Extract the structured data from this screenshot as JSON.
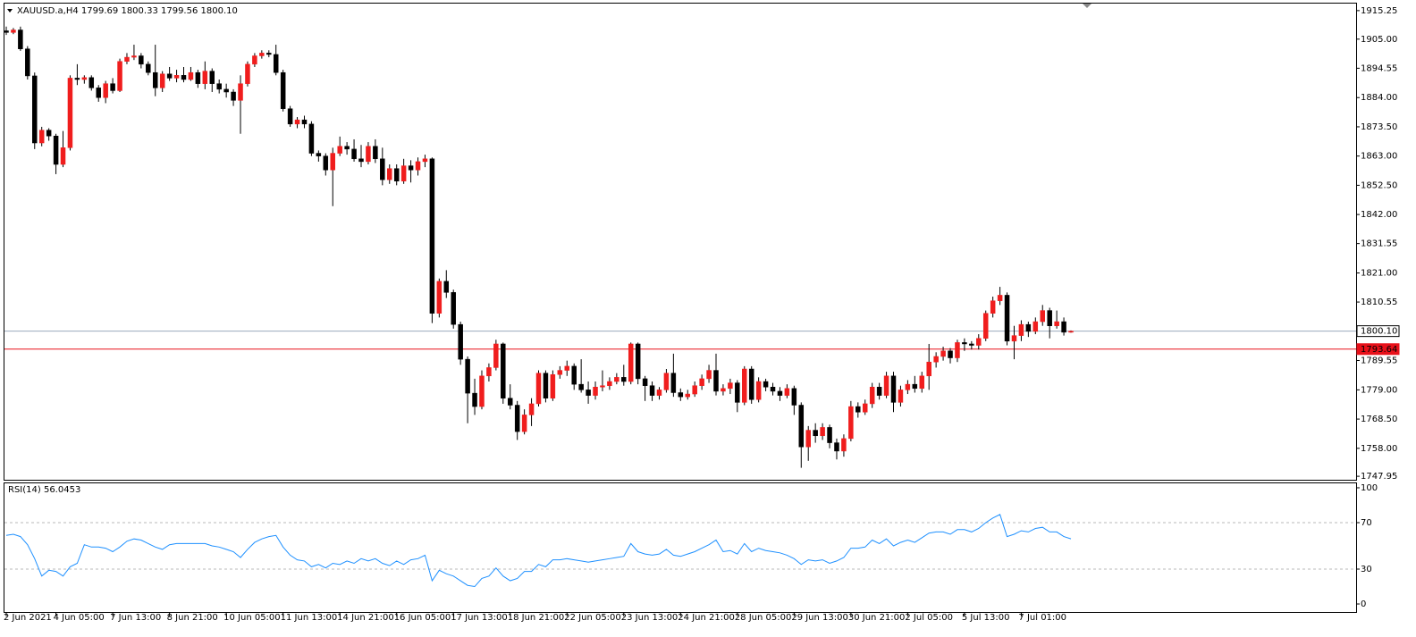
{
  "chart_data": [
    {
      "type": "candlestick",
      "title": "XAUUSD.a,H4 1799.69 1800.33 1799.56 1800.10",
      "categories": [
        "2 Jun 2021",
        null,
        null,
        null,
        null,
        null,
        null,
        "4 Jun 05:00",
        null,
        null,
        null,
        null,
        null,
        null,
        null,
        "7 Jun 13:00",
        null,
        null,
        null,
        null,
        null,
        null,
        null,
        "8 Jun 21:00",
        null,
        null,
        null,
        null,
        null,
        null,
        null,
        "10 Jun 05:00",
        null,
        null,
        null,
        null,
        null,
        null,
        null,
        "11 Jun 13:00",
        null,
        null,
        null,
        null,
        null,
        null,
        null,
        "14 Jun 21:00",
        null,
        null,
        null,
        null,
        null,
        null,
        null,
        "16 Jun 05:00",
        null,
        null,
        null,
        null,
        null,
        null,
        null,
        "17 Jun 13:00",
        null,
        null,
        null,
        null,
        null,
        null,
        null,
        "18 Jun 21:00",
        null,
        null,
        null,
        null,
        null,
        null,
        null,
        "22 Jun 05:00",
        null,
        null,
        null,
        null,
        null,
        null,
        null,
        "23 Jun 13:00",
        null,
        null,
        null,
        null,
        null,
        null,
        null,
        "24 Jun 21:00",
        null,
        null,
        null,
        null,
        null,
        null,
        null,
        "28 Jun 05:00",
        null,
        null,
        null,
        null,
        null,
        null,
        null,
        "29 Jun 13:00",
        null,
        null,
        null,
        null,
        null,
        null,
        null,
        "30 Jun 21:00",
        null,
        null,
        null,
        null,
        null,
        null,
        null,
        "2 Jul 05:00",
        null,
        null,
        null,
        null,
        null,
        null,
        null,
        "5 Jul 13:00",
        null,
        null,
        null,
        null,
        null,
        null,
        null,
        "7 Jul 01:00",
        null,
        null,
        null,
        null,
        null,
        null,
        null
      ],
      "open": [
        1908.0,
        1907.4,
        1908.3,
        1901.5,
        1891.8,
        1867.7,
        1872.3,
        1870.2,
        1860.0,
        1866.0,
        1891.0,
        1890.5,
        1891.2,
        1887.5,
        1884.0,
        1889.0,
        1886.5,
        1897.0,
        1898.5,
        1899.0,
        1896.0,
        1893.0,
        1887.5,
        1892.5,
        1891.0,
        1892.0,
        1890.5,
        1893.0,
        1889.0,
        1893.5,
        1889.0,
        1887.0,
        1886.0,
        1883.0,
        1889.0,
        1896.0,
        1899.0,
        1900.0,
        1899.5,
        1893.0,
        1880.0,
        1874.5,
        1876.0,
        1874.5,
        1864.0,
        1863.0,
        1858.0,
        1864.0,
        1866.5,
        1865.5,
        1862.0,
        1861.0,
        1866.5,
        1862.0,
        1854.5,
        1858.5,
        1854.0,
        1859.5,
        1858.0,
        1861.0,
        1862.0,
        1806.5,
        1818.0,
        1814.0,
        1802.5,
        1790.0,
        1777.8,
        1773.0,
        1784.0,
        1787.0,
        1795.5,
        1776.0,
        1773.5,
        1764.0,
        1770.0,
        1774.0,
        1785.0,
        1776.0,
        1784.5,
        1786.0,
        1787.5,
        1781.0,
        1779.0,
        1777.0,
        1780.0,
        1780.5,
        1782.0,
        1783.5,
        1782.0,
        1795.5,
        1783.0,
        1780.5,
        1777.0,
        1779.0,
        1785.0,
        1778.0,
        1776.5,
        1777.5,
        1780.5,
        1783.0,
        1786.0,
        1778.5,
        1779.5,
        1781.5,
        1774.5,
        1786.5,
        1775.5,
        1782.0,
        1780.0,
        1778.5,
        1777.0,
        1779.5,
        1773.5,
        1758.5,
        1764.5,
        1762.5,
        1765.5,
        1760.0,
        1757.0,
        1761.5,
        1773.0,
        1771.0,
        1774.0,
        1780.0,
        1777.0,
        1784.0,
        1774.5,
        1779.0,
        1781.0,
        1779.5,
        1784.0,
        1789.0,
        1791.0,
        1793.0,
        1790.5,
        1796.0,
        1795.5,
        1795.0,
        1797.5,
        1806.5,
        1811.0,
        1813.0,
        1796.5,
        1798.5,
        1802.5,
        1800.0,
        1803.5,
        1807.5,
        1802.0,
        1803.5,
        1799.69
      ],
      "high": [
        1909.5,
        1909.0,
        1909.5,
        1902.5,
        1893.0,
        1873.5,
        1873.0,
        1871.0,
        1872.0,
        1892.0,
        1896.0,
        1892.0,
        1892.0,
        1888.5,
        1890.0,
        1891.0,
        1898.0,
        1900.0,
        1903.0,
        1900.0,
        1897.0,
        1903.0,
        1893.5,
        1895.0,
        1894.0,
        1895.0,
        1895.0,
        1894.0,
        1897.0,
        1894.5,
        1890.5,
        1889.0,
        1887.0,
        1892.0,
        1897.0,
        1900.0,
        1901.0,
        1901.0,
        1903.0,
        1894.0,
        1881.0,
        1877.0,
        1877.5,
        1875.5,
        1865.0,
        1864.0,
        1866.0,
        1870.0,
        1868.0,
        1869.0,
        1867.0,
        1868.0,
        1869.0,
        1866.0,
        1860.0,
        1860.0,
        1862.0,
        1861.5,
        1862.5,
        1863.5,
        1862.5,
        1819.0,
        1822.0,
        1815.0,
        1803.5,
        1791.0,
        1783.0,
        1786.0,
        1788.5,
        1797.0,
        1796.0,
        1781.0,
        1775.0,
        1772.0,
        1776.0,
        1786.0,
        1786.0,
        1786.0,
        1787.5,
        1789.5,
        1788.5,
        1790.0,
        1782.0,
        1782.0,
        1786.0,
        1783.5,
        1785.0,
        1788.0,
        1796.0,
        1796.0,
        1784.0,
        1782.0,
        1780.0,
        1786.5,
        1792.0,
        1779.5,
        1779.0,
        1782.0,
        1784.5,
        1788.0,
        1792.0,
        1781.0,
        1783.0,
        1782.5,
        1787.5,
        1787.5,
        1783.5,
        1783.0,
        1781.5,
        1780.0,
        1781.0,
        1780.5,
        1774.5,
        1766.0,
        1767.0,
        1767.0,
        1766.5,
        1761.5,
        1763.0,
        1775.0,
        1774.5,
        1775.5,
        1781.5,
        1781.5,
        1785.5,
        1785.5,
        1780.5,
        1782.5,
        1784.0,
        1785.5,
        1795.5,
        1792.5,
        1794.5,
        1794.0,
        1797.0,
        1797.5,
        1796.5,
        1799.0,
        1807.5,
        1812.5,
        1816.0,
        1814.0,
        1802.0,
        1804.0,
        1803.5,
        1805.0,
        1809.5,
        1808.5,
        1807.5,
        1805.0,
        1800.33
      ],
      "low": [
        1906.5,
        1906.8,
        1900.8,
        1890.5,
        1865.5,
        1866.5,
        1868.5,
        1856.5,
        1859.0,
        1865.0,
        1888.5,
        1889.0,
        1886.5,
        1882.5,
        1882.0,
        1885.5,
        1886.0,
        1896.0,
        1897.5,
        1894.5,
        1892.0,
        1884.5,
        1886.0,
        1890.0,
        1889.5,
        1889.5,
        1890.0,
        1887.5,
        1887.0,
        1886.0,
        1885.5,
        1884.0,
        1881.0,
        1871.0,
        1888.0,
        1895.0,
        1898.0,
        1898.5,
        1892.0,
        1879.0,
        1873.5,
        1873.0,
        1873.0,
        1863.0,
        1861.0,
        1856.0,
        1845.0,
        1863.0,
        1863.5,
        1861.0,
        1859.0,
        1860.0,
        1860.5,
        1852.5,
        1853.0,
        1852.5,
        1853.0,
        1853.5,
        1856.0,
        1859.0,
        1803.0,
        1805.0,
        1812.0,
        1801.0,
        1788.0,
        1767.0,
        1770.0,
        1772.0,
        1782.0,
        1786.0,
        1774.0,
        1772.0,
        1761.0,
        1763.0,
        1766.0,
        1773.0,
        1774.5,
        1775.0,
        1783.0,
        1784.0,
        1779.0,
        1778.0,
        1774.0,
        1775.5,
        1778.5,
        1779.0,
        1781.0,
        1780.5,
        1781.0,
        1781.0,
        1775.0,
        1775.0,
        1775.5,
        1778.0,
        1776.5,
        1775.0,
        1775.5,
        1776.5,
        1779.0,
        1781.5,
        1777.0,
        1777.0,
        1777.5,
        1771.0,
        1773.5,
        1774.0,
        1774.5,
        1778.5,
        1777.0,
        1775.0,
        1776.0,
        1770.0,
        1751.0,
        1753.5,
        1760.0,
        1761.0,
        1758.0,
        1754.0,
        1755.0,
        1760.5,
        1769.0,
        1770.0,
        1772.5,
        1775.5,
        1776.0,
        1771.0,
        1773.0,
        1777.5,
        1778.0,
        1778.0,
        1779.0,
        1787.0,
        1789.5,
        1788.5,
        1789.0,
        1793.0,
        1793.5,
        1793.5,
        1796.5,
        1805.0,
        1809.5,
        1795.0,
        1790.0,
        1796.5,
        1798.0,
        1799.0,
        1802.0,
        1797.5,
        1801.0,
        1798.5,
        1799.56
      ],
      "close": [
        1907.4,
        1908.3,
        1901.5,
        1891.8,
        1867.7,
        1872.3,
        1870.2,
        1860.0,
        1866.0,
        1891.0,
        1890.5,
        1891.2,
        1887.5,
        1884.0,
        1889.0,
        1886.5,
        1897.0,
        1898.5,
        1899.0,
        1896.0,
        1893.0,
        1887.5,
        1892.5,
        1891.0,
        1892.0,
        1890.5,
        1893.0,
        1889.0,
        1893.5,
        1889.0,
        1887.0,
        1886.0,
        1883.0,
        1889.0,
        1896.0,
        1899.0,
        1900.0,
        1899.5,
        1893.0,
        1880.0,
        1874.5,
        1876.0,
        1874.5,
        1864.0,
        1863.0,
        1858.0,
        1864.0,
        1866.5,
        1865.5,
        1862.0,
        1861.0,
        1866.5,
        1862.0,
        1854.5,
        1858.5,
        1854.0,
        1859.5,
        1858.0,
        1861.0,
        1862.0,
        1806.5,
        1818.0,
        1814.0,
        1802.5,
        1790.0,
        1777.8,
        1773.0,
        1784.0,
        1787.0,
        1795.5,
        1776.0,
        1773.5,
        1764.0,
        1770.0,
        1774.0,
        1785.0,
        1776.0,
        1784.5,
        1786.0,
        1787.5,
        1781.0,
        1779.0,
        1777.0,
        1780.0,
        1780.5,
        1782.0,
        1783.5,
        1782.0,
        1795.5,
        1783.0,
        1780.5,
        1777.0,
        1779.0,
        1785.0,
        1778.0,
        1776.5,
        1777.5,
        1780.5,
        1783.0,
        1786.0,
        1778.5,
        1779.5,
        1781.5,
        1774.5,
        1786.5,
        1775.5,
        1782.0,
        1780.0,
        1778.5,
        1777.0,
        1779.5,
        1773.5,
        1758.5,
        1764.5,
        1762.5,
        1765.5,
        1760.0,
        1757.0,
        1761.5,
        1773.0,
        1771.0,
        1774.0,
        1780.0,
        1777.0,
        1784.0,
        1774.5,
        1779.0,
        1781.0,
        1779.5,
        1784.0,
        1789.0,
        1791.0,
        1793.0,
        1790.5,
        1796.0,
        1795.5,
        1795.0,
        1797.5,
        1806.5,
        1811.0,
        1813.0,
        1796.5,
        1798.5,
        1802.5,
        1800.0,
        1803.5,
        1807.5,
        1802.0,
        1803.5,
        1799.7,
        1800.1
      ],
      "up_color": "#f01d1d",
      "down_color": "#000000",
      "ylim": [
        1746.7,
        1918.1
      ],
      "yticks": [
        {
          "value": 1915.25,
          "label": "1915.25"
        },
        {
          "value": 1905,
          "label": "1905.00"
        },
        {
          "value": 1894.55,
          "label": "1894.55"
        },
        {
          "value": 1884,
          "label": "1884.00"
        },
        {
          "value": 1873.5,
          "label": "1873.50"
        },
        {
          "value": 1863,
          "label": "1863.00"
        },
        {
          "value": 1852.5,
          "label": "1852.50"
        },
        {
          "value": 1842,
          "label": "1842.00"
        },
        {
          "value": 1831.55,
          "label": "1831.55"
        },
        {
          "value": 1821,
          "label": "1821.00"
        },
        {
          "value": 1810.55,
          "label": "1810.55"
        },
        {
          "value": 1789.55,
          "label": "1789.55"
        },
        {
          "value": 1779,
          "label": "1779.00"
        },
        {
          "value": 1768.5,
          "label": "1768.50"
        },
        {
          "value": 1758,
          "label": "1758.00"
        },
        {
          "value": 1747.95,
          "label": "1747.95"
        }
      ],
      "price_lines": [
        {
          "value": 1800.1,
          "label": "1800.10",
          "color": "#9aaabb",
          "text_color": "#000000"
        },
        {
          "value": 1793.64,
          "label": "1793.64",
          "color": "#e8111a",
          "text_color": "#ffffff"
        }
      ]
    },
    {
      "type": "line",
      "title": "RSI(14) 56.0453",
      "values": [
        59,
        60,
        58,
        51,
        39,
        24,
        29,
        28,
        24,
        32,
        35,
        51,
        49,
        49,
        48,
        45,
        49,
        54,
        56,
        55,
        52,
        49,
        47,
        51,
        52,
        52,
        52,
        52,
        52,
        50,
        49,
        47,
        45,
        40,
        47,
        53,
        56,
        58,
        59,
        49,
        42,
        38,
        37,
        32,
        34,
        31,
        35,
        34,
        37,
        35,
        39,
        37,
        39,
        35,
        33,
        37,
        34,
        38,
        39,
        42,
        20,
        29,
        26,
        24,
        20,
        16,
        15,
        22,
        24,
        31,
        24,
        20,
        22,
        28,
        28,
        34,
        32,
        38,
        38,
        39,
        38,
        37,
        36,
        37,
        38,
        39,
        40,
        41,
        52,
        45,
        43,
        42,
        43,
        47,
        42,
        41,
        43,
        45,
        48,
        51,
        55,
        45,
        46,
        43,
        52,
        45,
        48,
        46,
        45,
        44,
        42,
        39,
        34,
        38,
        37,
        38,
        35,
        37,
        40,
        48,
        48,
        49,
        55,
        52,
        56,
        50,
        53,
        55,
        53,
        57,
        61,
        62,
        62,
        60,
        64,
        64,
        62,
        65,
        70,
        74,
        77,
        58,
        60,
        63,
        62,
        65,
        66,
        62,
        62,
        58,
        56.0453
      ],
      "color": "#1e90ff",
      "ylim": [
        -6.9,
        104.6
      ],
      "yticks": [
        100,
        70,
        30,
        0
      ],
      "levels": [
        70,
        30
      ],
      "level_color": "#b8b8b8"
    }
  ]
}
